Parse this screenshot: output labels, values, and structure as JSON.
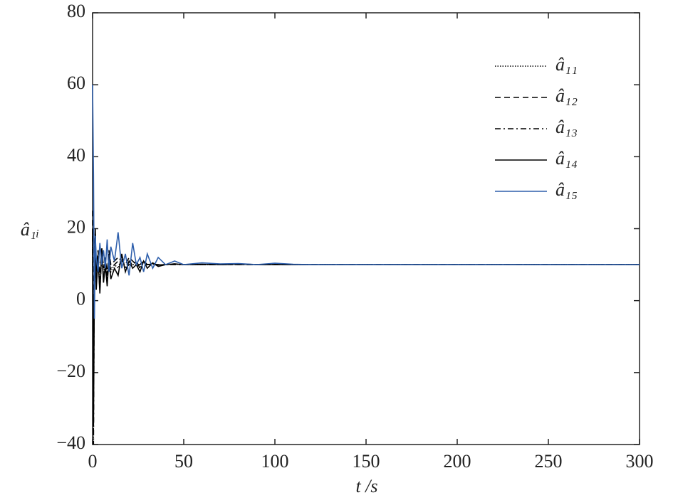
{
  "chart_data": {
    "type": "line",
    "xlabel": "t /s",
    "ylabel": "â₁ᵢ",
    "x": [
      0,
      0.5,
      1,
      1.5,
      2,
      3,
      4,
      5,
      6,
      7,
      8,
      9,
      10,
      12,
      14,
      16,
      18,
      20,
      22,
      24,
      26,
      28,
      30,
      33,
      36,
      40,
      45,
      50,
      60,
      70,
      80,
      90,
      100,
      110,
      120,
      150,
      200,
      250,
      300
    ],
    "series": [
      {
        "name": "â₁₁",
        "color": "#000000",
        "dash": "dotted",
        "values": [
          15,
          -20,
          8,
          18,
          6,
          13,
          4,
          12,
          7,
          11,
          5,
          13,
          8,
          10,
          9,
          12,
          9,
          11,
          10,
          10,
          9,
          11,
          10,
          10.3,
          9.8,
          10,
          10.1,
          10,
          10,
          10,
          10.1,
          10,
          10,
          10,
          10,
          10,
          10,
          10,
          10
        ]
      },
      {
        "name": "â₁₂",
        "color": "#000000",
        "dash": "dashed",
        "values": [
          25,
          -10,
          10,
          16,
          8,
          14,
          6,
          15,
          9,
          12,
          7,
          14,
          10,
          11,
          12,
          11,
          10,
          12,
          11,
          10,
          10,
          11,
          10,
          10.2,
          10,
          10,
          10.2,
          10,
          10,
          10,
          10,
          10,
          10,
          10,
          10,
          10,
          10,
          10,
          10
        ]
      },
      {
        "name": "â₁₃",
        "color": "#000000",
        "dash": "dashdot",
        "values": [
          18,
          -40,
          12,
          19,
          5,
          11,
          3,
          13,
          6,
          9,
          8,
          12,
          9,
          10,
          11,
          12,
          9,
          10,
          10,
          11,
          9,
          10,
          10,
          10.1,
          9.9,
          10,
          10,
          10,
          10,
          10,
          10,
          10,
          10,
          10,
          10,
          10,
          10,
          10,
          10
        ]
      },
      {
        "name": "â₁₄",
        "color": "#000000",
        "dash": "solid",
        "values": [
          20,
          -35,
          5,
          20,
          3,
          12,
          2,
          14,
          5,
          10,
          4,
          12,
          6,
          9,
          7,
          13,
          8,
          11,
          9,
          10,
          8,
          11,
          9,
          10.5,
          9.5,
          10,
          10.2,
          10,
          10.1,
          10,
          10.2,
          10,
          10,
          10,
          10,
          10,
          10,
          10,
          10
        ]
      },
      {
        "name": "â₁₅",
        "color": "#2e5fac",
        "dash": "solid",
        "values": [
          60,
          35,
          -5,
          18,
          12,
          8,
          16,
          10,
          14,
          9,
          17,
          8,
          15,
          11,
          19,
          9,
          13,
          7,
          16,
          10,
          12,
          8,
          13,
          9,
          12,
          10,
          11,
          10,
          10.5,
          10.2,
          10.3,
          10,
          10.4,
          10.1,
          10,
          10,
          10,
          10,
          10
        ]
      }
    ],
    "xlim": [
      0,
      300
    ],
    "xticks": [
      0,
      50,
      100,
      150,
      200,
      250,
      300
    ],
    "ylim": [
      -40,
      80
    ],
    "yticks": [
      {
        "value": -40,
        "label": "−40"
      },
      {
        "value": -20,
        "label": "−20"
      },
      0,
      20,
      40,
      60,
      80
    ],
    "grid": false,
    "legend": "upper right"
  }
}
